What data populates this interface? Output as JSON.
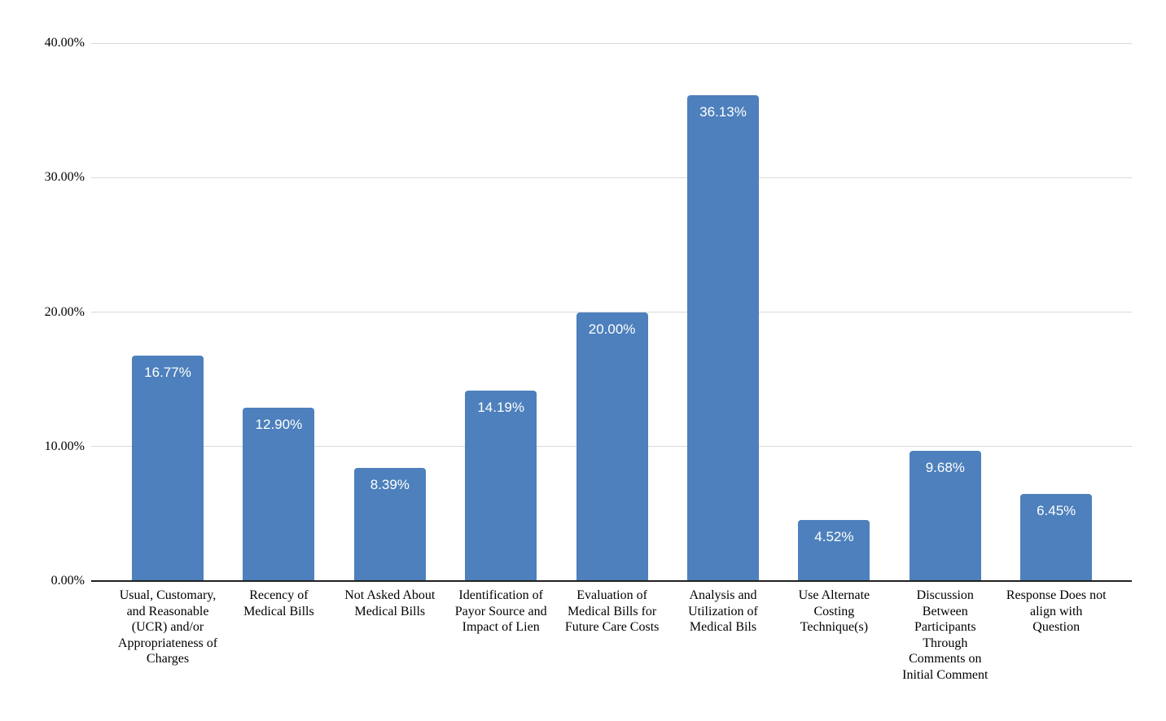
{
  "chart_data": {
    "type": "bar",
    "title": "",
    "xlabel": "",
    "ylabel": "",
    "categories": [
      "Usual, Customary, and Reasonable (UCR) and/or Appropriateness of Charges",
      "Recency of Medical Bills",
      "Not Asked About Medical Bills",
      "Identification of Payor Source and Impact of Lien",
      "Evaluation of Medical Bills for Future Care Costs",
      "Analysis and Utilization of Medical Bils",
      "Use Alternate Costing Technique(s)",
      "Discussion Between Participants Through Comments on Initial Comment",
      "Response Does not align with Question"
    ],
    "values": [
      16.77,
      12.9,
      8.39,
      14.19,
      20.0,
      36.13,
      4.52,
      9.68,
      6.45
    ],
    "value_labels": [
      "16.77%",
      "12.90%",
      "8.39%",
      "14.19%",
      "20.00%",
      "36.13%",
      "4.52%",
      "9.68%",
      "6.45%"
    ],
    "ylim": [
      0,
      40
    ],
    "yticks": [
      {
        "value": 0,
        "label": "0.00%"
      },
      {
        "value": 10,
        "label": "10.00%"
      },
      {
        "value": 20,
        "label": "20.00%"
      },
      {
        "value": 30,
        "label": "30.00%"
      },
      {
        "value": 40,
        "label": "40.00%"
      }
    ],
    "grid": "horizontal",
    "legend_position": "none",
    "bar_color": "#4D80BC",
    "bar_label_color": "#ffffff",
    "axis_text_color": "#000000",
    "gridline_color": "#d9d9d9",
    "baseline_color": "#212121",
    "background_color": "#ffffff"
  }
}
